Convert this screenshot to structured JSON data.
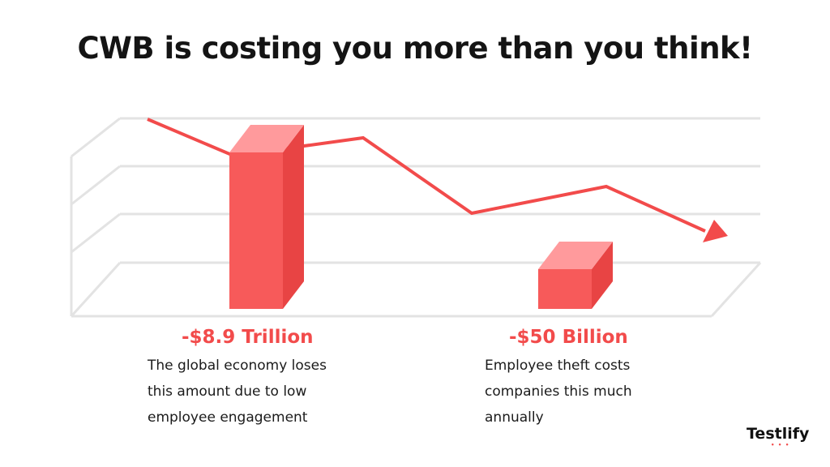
{
  "title": "CWB is costing you more than you think!",
  "chart_data": {
    "type": "bar",
    "categories": [
      "-$8.9 Trillion",
      "-$50 Billion"
    ],
    "values": [
      8.9,
      0.05
    ],
    "bar_color": "#f75a5a",
    "line_color": "#f24b4b",
    "grid": true
  },
  "stats": [
    {
      "value": "-$8.9 Trillion",
      "desc": [
        "The global economy loses",
        "this amount due to low",
        "employee engagement"
      ]
    },
    {
      "value": "-$50 Billion",
      "desc": [
        "Employee theft costs",
        "companies this much",
        "annually"
      ]
    }
  ],
  "brand": {
    "name": "Testlify",
    "dots": "• • •"
  },
  "colors": {
    "accent": "#f24b4b",
    "text": "#141414",
    "grid": "#e3e3e3"
  }
}
